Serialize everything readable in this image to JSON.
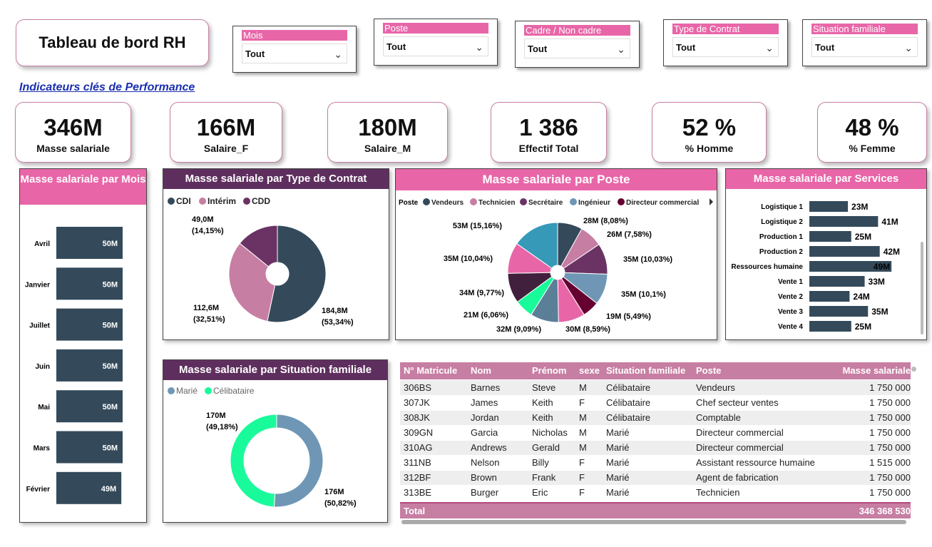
{
  "header": {
    "title": "Tableau de bord RH"
  },
  "slicers": [
    {
      "label": "Mois",
      "value": "Tout"
    },
    {
      "label": "Poste",
      "value": "Tout"
    },
    {
      "label": "Cadre / Non cadre",
      "value": "Tout"
    },
    {
      "label": "Type de Contrat",
      "value": "Tout"
    },
    {
      "label": "Situation familiale",
      "value": "Tout"
    }
  ],
  "kpi_heading": "Indicateurs clés de Performance",
  "kpis": [
    {
      "value": "346M",
      "label": "Masse salariale"
    },
    {
      "value": "166M",
      "label": "Salaire_F"
    },
    {
      "value": "180M",
      "label": "Salaire_M"
    },
    {
      "value": "1 386",
      "label": "Effectif Total"
    },
    {
      "value": "52 %",
      "label": "% Homme"
    },
    {
      "value": "48 %",
      "label": "% Femme"
    }
  ],
  "colors": {
    "pink": "#e866a8",
    "mauve": "#c77ea3",
    "plum": "#5e2f5e",
    "slate": "#344a5a"
  },
  "chart_data": [
    {
      "id": "mois",
      "type": "bar",
      "title": "Masse salariale par Mois",
      "categories": [
        "Avril",
        "Janvier",
        "Juillet",
        "Juin",
        "Mai",
        "Mars",
        "Février"
      ],
      "values": [
        50,
        50,
        50,
        50,
        50,
        50,
        49
      ],
      "labels": [
        "50M",
        "50M",
        "50M",
        "50M",
        "50M",
        "50M",
        "49M"
      ],
      "unit": "M"
    },
    {
      "id": "contrat",
      "type": "pie",
      "title": "Masse salariale par Type de Contrat",
      "legend": [
        "CDI",
        "Intérim",
        "CDD"
      ],
      "values": [
        184.8,
        112.6,
        49.0
      ],
      "labels": [
        "184,8M (53,34%)",
        "112,6M (32,51%)",
        "49,0M (14,15%)"
      ],
      "colors": [
        "#344a5a",
        "#c77ea3",
        "#6a3364"
      ]
    },
    {
      "id": "poste",
      "type": "pie",
      "title": "Masse salariale par Poste",
      "legend_title": "Poste",
      "legend": [
        "Vendeurs",
        "Technicien",
        "Secrétaire",
        "Ingénieur",
        "Directeur commercial"
      ],
      "legend_colors": [
        "#344a5a",
        "#c77ea3",
        "#6a3364",
        "#6f97b5",
        "#650031"
      ],
      "values": [
        28,
        26,
        35,
        35,
        19,
        30,
        32,
        21,
        34,
        35,
        53
      ],
      "labels": [
        "28M (8,08%)",
        "26M (7,58%)",
        "35M (10,03%)",
        "35M (10,1%)",
        "19M (5,49%)",
        "30M (8,59%)",
        "32M (9,09%)",
        "21M (6,06%)",
        "34M (9,77%)",
        "35M (10,04%)",
        "53M (15,16%)"
      ],
      "colors": [
        "#344a5a",
        "#c77ea3",
        "#6a3364",
        "#6f97b5",
        "#650031",
        "#e866a8",
        "#5b7f97",
        "#19fb9b",
        "#41203d",
        "#e866a8",
        "#3799b8"
      ]
    },
    {
      "id": "services",
      "type": "bar",
      "title": "Masse salariale par Services",
      "categories": [
        "Logistique 1",
        "Logistique 2",
        "Production 1",
        "Production 2",
        "Ressources humaine",
        "Vente 1",
        "Vente 2",
        "Vente 3",
        "Vente 4"
      ],
      "values": [
        23,
        41,
        25,
        42,
        49,
        33,
        24,
        35,
        25
      ],
      "labels": [
        "23M",
        "41M",
        "25M",
        "42M",
        "49M",
        "33M",
        "24M",
        "35M",
        "25M"
      ]
    },
    {
      "id": "famille",
      "type": "pie",
      "title": "Masse salariale par Situation familiale",
      "legend": [
        "Marié",
        "Célibataire"
      ],
      "values": [
        176,
        170
      ],
      "labels": [
        "176M (50,82%)",
        "170M (49,18%)"
      ],
      "colors": [
        "#6f97b5",
        "#19fb9b"
      ]
    }
  ],
  "table": {
    "columns": [
      "N° Matricule",
      "Nom",
      "Prénom",
      "sexe",
      "Situation familiale",
      "Poste",
      "Masse salariale"
    ],
    "rows": [
      [
        "306BS",
        "Barnes",
        "Steve",
        "M",
        "Célibataire",
        "Vendeurs",
        "1 750 000"
      ],
      [
        "307JK",
        "James",
        "Keith",
        "F",
        "Célibataire",
        "Chef secteur ventes",
        "1 750 000"
      ],
      [
        "308JK",
        "Jordan",
        "Keith",
        "M",
        "Célibataire",
        "Comptable",
        "1 750 000"
      ],
      [
        "309GN",
        "Garcia",
        "Nicholas",
        "M",
        "Marié",
        "Directeur commercial",
        "1 750 000"
      ],
      [
        "310AG",
        "Andrews",
        "Gerald",
        "M",
        "Marié",
        "Directeur commercial",
        "1 750 000"
      ],
      [
        "311NB",
        "Nelson",
        "Billy",
        "F",
        "Marié",
        "Assistant ressource humaine",
        "1 515 000"
      ],
      [
        "312BF",
        "Brown",
        "Frank",
        "F",
        "Marié",
        "Agent de fabrication",
        "1 750 000"
      ],
      [
        "313BE",
        "Burger",
        "Eric",
        "F",
        "Marié",
        "Technicien",
        "1 750 000"
      ]
    ],
    "total_label": "Total",
    "total_value": "346 368 530"
  }
}
